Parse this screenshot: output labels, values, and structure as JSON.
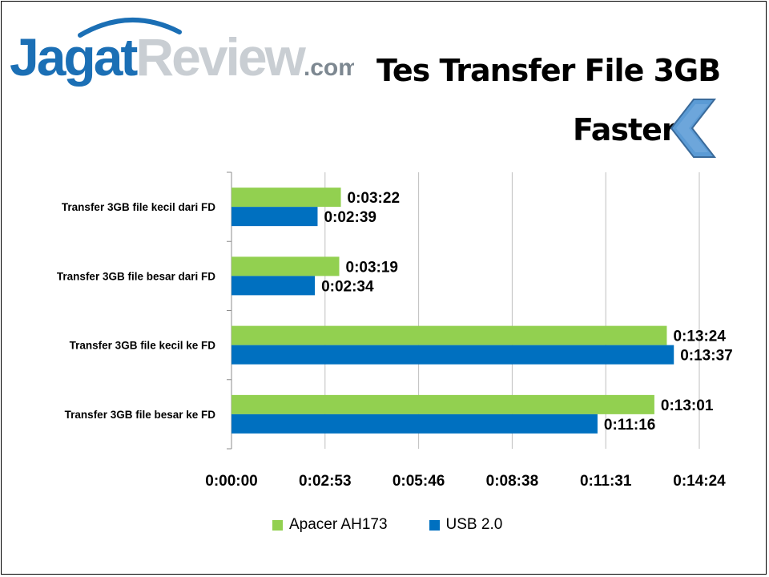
{
  "logo": {
    "part1": "Jagat",
    "part2": "Review",
    "part3": ".com"
  },
  "chart_data": {
    "type": "bar",
    "orientation": "horizontal",
    "title": "Tes Transfer File 3GB",
    "annotation": "Faster",
    "categories": [
      "Transfer 3GB file kecil dari FD",
      "Transfer 3GB file besar dari FD",
      "Transfer 3GB file kecil ke FD",
      "Transfer 3GB file besar ke FD"
    ],
    "series": [
      {
        "name": "Apacer AH173",
        "color": "#92d050",
        "values_seconds": [
          202,
          199,
          804,
          781
        ],
        "labels": [
          "0:03:22",
          "0:03:19",
          "0:13:24",
          "0:13:01"
        ]
      },
      {
        "name": "USB 2.0",
        "color": "#0070c0",
        "values_seconds": [
          159,
          154,
          817,
          676
        ],
        "labels": [
          "0:02:39",
          "0:02:34",
          "0:13:37",
          "0:11:16"
        ]
      }
    ],
    "x_unit": "h:mm:ss",
    "xlim_seconds": [
      0,
      864
    ],
    "x_ticks_seconds": [
      0,
      172.8,
      345.6,
      518.4,
      691.2,
      864
    ],
    "x_tick_labels": [
      "0:00:00",
      "0:02:53",
      "0:05:46",
      "0:08:38",
      "0:11:31",
      "0:14:24"
    ],
    "grid": "vertical",
    "legend_position": "bottom"
  }
}
